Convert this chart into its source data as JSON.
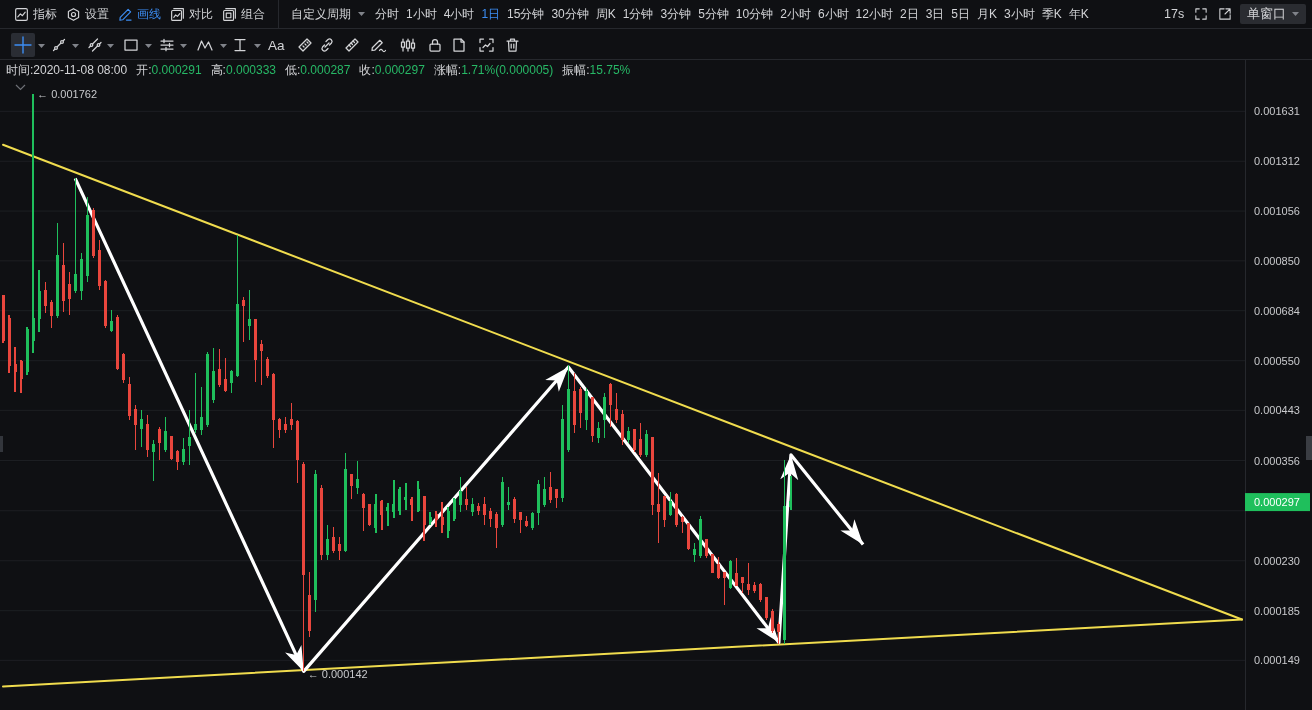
{
  "chart_data": {
    "type": "candlestick",
    "categories": [
      null,
      null,
      null,
      null,
      null,
      null,
      null,
      null,
      null,
      null,
      null,
      null,
      null,
      null,
      null,
      null,
      null,
      null,
      null,
      null,
      null,
      null,
      null,
      null,
      null,
      null,
      null,
      null,
      null,
      null,
      null,
      null,
      null,
      null,
      null,
      null,
      null,
      null,
      null,
      null,
      null,
      null,
      null,
      null,
      null,
      null,
      null,
      null,
      null,
      null,
      null,
      null,
      null,
      null,
      null,
      null,
      null,
      null,
      null,
      null,
      null,
      null,
      null,
      null,
      null,
      null,
      null,
      null,
      null,
      null,
      null,
      null,
      null,
      null,
      null,
      null,
      null,
      null,
      null,
      null,
      null,
      null,
      null,
      null,
      null,
      null,
      null,
      null,
      null,
      null,
      null,
      null,
      null,
      null,
      null,
      null,
      null,
      null,
      null,
      null,
      null,
      null,
      null,
      null,
      null,
      null,
      null,
      null,
      null,
      null,
      null,
      null,
      null,
      null,
      null,
      null,
      null,
      null,
      null,
      null,
      null,
      null,
      null,
      null,
      null,
      null,
      null,
      null,
      null,
      null,
      null,
      null,
      null,
      null,
      null,
      null,
      null,
      null,
      null,
      null,
      null,
      null,
      null,
      null,
      null,
      null,
      null,
      null,
      null,
      null,
      null,
      null,
      null,
      null,
      null,
      null,
      null,
      null,
      null,
      null,
      null,
      null,
      null,
      null,
      null,
      null,
      null,
      null,
      null,
      null,
      null,
      null,
      null,
      null,
      null,
      null,
      null,
      null,
      null,
      null,
      null,
      null,
      null,
      null,
      null,
      null,
      null,
      null,
      null,
      null,
      null,
      null,
      null,
      null,
      null,
      null,
      null,
      null,
      null,
      null,
      null,
      null,
      null,
      null,
      null,
      null,
      null
    ],
    "ohlc": [
      [
        0.000732,
        0.000732,
        0.000594,
        0.000602
      ],
      [
        0.000662,
        0.000671,
        0.000521,
        0.00054
      ],
      [
        0.00054,
        0.000584,
        0.00048,
        0.000524
      ],
      [
        0.000547,
        0.000552,
        0.000478,
        0.00051
      ],
      [
        0.000524,
        0.000637,
        0.000517,
        0.000629
      ],
      [
        0.000602,
        0.001762,
        0.000569,
        0.000662
      ],
      [
        0.000662,
        0.000816,
        0.000623,
        0.000742
      ],
      [
        0.000748,
        0.000775,
        0.000677,
        0.000701
      ],
      [
        0.00071,
        0.000716,
        0.000634,
        0.000671
      ],
      [
        0.000671,
        0.001001,
        0.000662,
        0.000871
      ],
      [
        0.000834,
        0.000918,
        0.00068,
        0.000716
      ],
      [
        0.000765,
        0.000809,
        0.000671,
        0.000722
      ],
      [
        0.000748,
        0.001218,
        0.000738,
        0.000799
      ],
      [
        0.000748,
        0.000879,
        0.000716,
        0.000853
      ],
      [
        0.000799,
        0.001121,
        0.000775,
        0.001037
      ],
      [
        0.00106,
        0.001069,
        0.00086,
        0.000871
      ],
      [
        0.00089,
        0.00093,
        0.000748,
        0.000765
      ],
      [
        0.000775,
        0.000781,
        0.000634,
        0.000642
      ],
      [
        0.000629,
        0.000686,
        0.000623,
        0.000651
      ],
      [
        0.000665,
        0.000671,
        0.000528,
        0.000533
      ],
      [
        0.000564,
        0.000569,
        0.000499,
        0.000506
      ],
      [
        0.000495,
        0.000512,
        0.000425,
        0.000434
      ],
      [
        0.000444,
        0.000454,
        0.000373,
        0.000416
      ],
      [
        0.00041,
        0.000444,
        0.000378,
        0.000425
      ],
      [
        0.000416,
        0.000434,
        0.000362,
        0.000373
      ],
      [
        0.00037,
        0.00039,
        0.000325,
        0.000381
      ],
      [
        0.000407,
        0.000412,
        0.000357,
        0.000386
      ],
      [
        0.000373,
        0.00043,
        0.00037,
        0.000403
      ],
      [
        0.000395,
        0.000395,
        0.000357,
        0.00036
      ],
      [
        0.00037,
        0.000373,
        0.000342,
        0.000354
      ],
      [
        0.000354,
        0.000393,
        0.000349,
        0.000373
      ],
      [
        0.000381,
        0.000444,
        0.000349,
        0.000393
      ],
      [
        0.000407,
        0.000521,
        0.000402,
        0.000416
      ],
      [
        0.000407,
        0.00049,
        0.000398,
        0.000429
      ],
      [
        0.000416,
        0.000571,
        0.000412,
        0.000564
      ],
      [
        0.000464,
        0.000581,
        0.000458,
        0.000524
      ],
      [
        0.000528,
        0.000578,
        0.00049,
        0.000497
      ],
      [
        0.000506,
        0.000556,
        0.00048,
        0.000484
      ],
      [
        0.000501,
        0.000528,
        0.000478,
        0.000524
      ],
      [
        0.000517,
        0.00095,
        0.000512,
        0.000701
      ],
      [
        0.000716,
        0.000726,
        0.000597,
        0.000701
      ],
      [
        0.000642,
        0.000748,
        0.000602,
        0.000657
      ],
      [
        0.000657,
        0.000657,
        0.000501,
        0.000552
      ],
      [
        0.000589,
        0.000602,
        0.000495,
        0.000576
      ],
      [
        0.000552,
        0.000559,
        0.00051,
        0.000517
      ],
      [
        0.000517,
        0.000521,
        0.000376,
        0.000425
      ],
      [
        0.000425,
        0.000429,
        0.000393,
        0.000407
      ],
      [
        0.000416,
        0.00043,
        0.000402,
        0.000407
      ],
      [
        0.000425,
        0.000458,
        0.000407,
        0.000416
      ],
      [
        0.000421,
        0.000425,
        0.000323,
        0.000357
      ],
      [
        0.000349,
        0.000354,
        0.000142,
        0.000217
      ],
      [
        0.000198,
        0.000219,
        0.000165,
        0.00017
      ],
      [
        0.000194,
        0.000342,
        0.000184,
        0.000335
      ],
      [
        0.000315,
        0.00032,
        0.000231,
        0.000236
      ],
      [
        0.000236,
        0.000269,
        0.000231,
        0.000252
      ],
      [
        0.000254,
        0.000266,
        0.000238,
        0.000241
      ],
      [
        0.000247,
        0.000255,
        0.000231,
        0.000241
      ],
      [
        0.000241,
        0.000368,
        0.000239,
        0.000342
      ],
      [
        0.000335,
        0.000335,
        0.000301,
        0.00032
      ],
      [
        0.000316,
        0.000356,
        0.000308,
        0.000327
      ],
      [
        0.000307,
        0.000309,
        0.000262,
        0.00029
      ],
      [
        0.000294,
        0.000294,
        0.000268,
        0.00027
      ],
      [
        0.000266,
        0.000308,
        0.00026,
        0.000294
      ],
      [
        0.000297,
        0.0003,
        0.000263,
        0.000281
      ],
      [
        0.000287,
        0.000296,
        0.000268,
        0.00029
      ],
      [
        0.000285,
        0.000327,
        0.000277,
        0.000294
      ],
      [
        0.000287,
        0.000317,
        0.000281,
        0.000313
      ],
      [
        0.0003,
        0.000323,
        0.000287,
        0.000303
      ],
      [
        0.0003,
        0.000304,
        0.000273,
        0.000294
      ],
      [
        0.000287,
        0.000325,
        0.000284,
        0.000313
      ],
      [
        0.000304,
        0.000305,
        0.000251,
        0.000269
      ],
      [
        0.000273,
        0.000285,
        0.000269,
        0.000277
      ],
      [
        0.000281,
        0.000286,
        0.000266,
        0.000275
      ],
      [
        0.000277,
        0.000297,
        0.00026,
        0.000269
      ],
      [
        0.000263,
        0.000291,
        0.000254,
        0.000285
      ],
      [
        0.000277,
        0.000303,
        0.000273,
        0.0003
      ],
      [
        0.000294,
        0.000332,
        0.000285,
        0.000311
      ],
      [
        0.0003,
        0.000317,
        0.000287,
        0.000294
      ],
      [
        0.000285,
        0.000303,
        0.000279,
        0.000294
      ],
      [
        0.000291,
        0.000296,
        0.000281,
        0.000287
      ],
      [
        0.000294,
        0.000304,
        0.000269,
        0.000281
      ],
      [
        0.000285,
        0.00029,
        0.000267,
        0.000277
      ],
      [
        0.000281,
        0.000284,
        0.000243,
        0.000266
      ],
      [
        0.000269,
        0.000332,
        0.000267,
        0.000323
      ],
      [
        0.000294,
        0.000317,
        0.000287,
        0.000296
      ],
      [
        0.0003,
        0.000304,
        0.000271,
        0.000277
      ],
      [
        0.000284,
        0.000285,
        0.00026,
        0.000275
      ],
      [
        0.000273,
        0.00028,
        0.000266,
        0.000268
      ],
      [
        0.000266,
        0.000285,
        0.000263,
        0.000282
      ],
      [
        0.000284,
        0.000327,
        0.000269,
        0.00032
      ],
      [
        0.000294,
        0.000332,
        0.000291,
        0.000313
      ],
      [
        0.000316,
        0.000339,
        0.000296,
        0.0003
      ],
      [
        0.000313,
        0.000313,
        0.00029,
        0.000303
      ],
      [
        0.000303,
        0.000454,
        0.000297,
        0.000425
      ],
      [
        0.000373,
        0.00054,
        0.00037,
        0.000484
      ],
      [
        0.00048,
        0.000521,
        0.000402,
        0.000416
      ],
      [
        0.000484,
        0.00049,
        0.00041,
        0.00044
      ],
      [
        0.000425,
        0.000488,
        0.000407,
        0.00048
      ],
      [
        0.000468,
        0.000468,
        0.000386,
        0.000398
      ],
      [
        0.000393,
        0.000421,
        0.000385,
        0.00041
      ],
      [
        0.000425,
        0.000478,
        0.000393,
        0.000468
      ],
      [
        0.000495,
        0.000499,
        0.000412,
        0.000454
      ],
      [
        0.000444,
        0.000478,
        0.000419,
        0.000425
      ],
      [
        0.000434,
        0.000444,
        0.000381,
        0.00039
      ],
      [
        0.00039,
        0.000412,
        0.000385,
        0.000403
      ],
      [
        0.000407,
        0.000407,
        0.00037,
        0.000373
      ],
      [
        0.00039,
        0.000419,
        0.000362,
        0.000365
      ],
      [
        0.000365,
        0.000407,
        0.000362,
        0.000398
      ],
      [
        0.000393,
        0.000393,
        0.000281,
        0.000294
      ],
      [
        0.000294,
        0.000337,
        0.000249,
        0.000285
      ],
      [
        0.000304,
        0.000304,
        0.000266,
        0.000275
      ],
      [
        0.000281,
        0.000311,
        0.000279,
        0.000297
      ],
      [
        0.000307,
        0.000309,
        0.000267,
        0.000269
      ],
      [
        0.000277,
        0.000279,
        0.00026,
        0.000273
      ],
      [
        0.000271,
        0.000271,
        0.000241,
        0.000243
      ],
      [
        0.000236,
        0.000249,
        0.000229,
        0.000241
      ],
      [
        0.000235,
        0.000279,
        0.000233,
        0.000275
      ],
      [
        0.000252,
        0.000252,
        0.000233,
        0.000235
      ],
      [
        0.000236,
        0.000236,
        0.000218,
        0.000219
      ],
      [
        0.000226,
        0.000234,
        0.000212,
        0.000214
      ],
      [
        0.000218,
        0.000218,
        0.00019,
        0.000214
      ],
      [
        0.000205,
        0.000231,
        0.000203,
        0.000229
      ],
      [
        0.000217,
        0.000233,
        0.000206,
        0.000207
      ],
      [
        0.000214,
        0.000214,
        0.0002,
        0.000209
      ],
      [
        0.000207,
        0.000228,
        0.000198,
        0.000203
      ],
      [
        0.000206,
        0.00021,
        0.0002,
        0.000202
      ],
      [
        0.000207,
        0.000209,
        0.000192,
        0.000194
      ],
      [
        0.000196,
        0.000196,
        0.000178,
        0.00018
      ],
      [
        0.000184,
        0.000186,
        0.000168,
        0.00017
      ],
      [
        0.000174,
        0.000176,
        0.00016,
        0.000169
      ],
      [
        0.000163,
        0.000357,
        0.00016,
        0.000291
      ],
      [
        0.000291,
        0.000333,
        0.000287,
        0.000297
      ],
      null,
      null,
      null,
      null,
      null,
      null,
      null,
      null,
      null,
      null,
      null,
      null,
      null,
      null,
      null,
      null,
      null,
      null,
      null,
      null,
      null,
      null,
      null,
      null,
      null,
      null,
      null,
      null,
      null,
      null,
      null,
      null,
      null,
      null,
      null,
      null,
      null,
      null,
      null,
      null,
      null,
      null,
      null,
      null,
      null,
      null,
      null,
      null,
      null,
      null,
      null,
      null,
      null,
      null,
      null,
      null,
      null,
      null,
      null,
      null,
      null,
      null,
      null,
      null,
      null,
      null,
      null,
      null,
      null,
      null,
      null,
      null,
      null,
      null,
      null
    ],
    "colors": [
      "#e9463d",
      "#e9463d",
      "#e9463d",
      "#e9463d",
      "#1fbf5c",
      "#1fbf5c",
      "#1fbf5c",
      "#e9463d",
      "#e9463d",
      "#1fbf5c",
      "#e9463d",
      "#e9463d",
      "#1fbf5c",
      "#1fbf5c",
      "#1fbf5c",
      "#e9463d",
      "#e9463d",
      "#e9463d",
      "#1fbf5c",
      "#e9463d",
      "#e9463d",
      "#e9463d",
      "#e9463d",
      "#1fbf5c",
      "#e9463d",
      "#1fbf5c",
      "#e9463d",
      "#1fbf5c",
      "#e9463d",
      "#e9463d",
      "#1fbf5c",
      "#1fbf5c",
      "#1fbf5c",
      "#1fbf5c",
      "#1fbf5c",
      "#1fbf5c",
      "#e9463d",
      "#e9463d",
      "#1fbf5c",
      "#1fbf5c",
      "#e9463d",
      "#1fbf5c",
      "#e9463d",
      "#e9463d",
      "#e9463d",
      "#e9463d",
      "#e9463d",
      "#e9463d",
      "#e9463d",
      "#e9463d",
      "#e9463d",
      "#e9463d",
      "#1fbf5c",
      "#e9463d",
      "#1fbf5c",
      "#e9463d",
      "#e9463d",
      "#1fbf5c",
      "#e9463d",
      "#1fbf5c",
      "#e9463d",
      "#e9463d",
      "#1fbf5c",
      "#e9463d",
      "#1fbf5c",
      "#1fbf5c",
      "#1fbf5c",
      "#1fbf5c",
      "#e9463d",
      "#1fbf5c",
      "#e9463d",
      "#1fbf5c",
      "#e9463d",
      "#e9463d",
      "#1fbf5c",
      "#1fbf5c",
      "#1fbf5c",
      "#e9463d",
      "#1fbf5c",
      "#e9463d",
      "#e9463d",
      "#e9463d",
      "#e9463d",
      "#1fbf5c",
      "#1fbf5c",
      "#e9463d",
      "#e9463d",
      "#e9463d",
      "#1fbf5c",
      "#1fbf5c",
      "#1fbf5c",
      "#e9463d",
      "#e9463d",
      "#1fbf5c",
      "#1fbf5c",
      "#e9463d",
      "#e9463d",
      "#1fbf5c",
      "#e9463d",
      "#1fbf5c",
      "#1fbf5c",
      "#e9463d",
      "#e9463d",
      "#e9463d",
      "#1fbf5c",
      "#e9463d",
      "#e9463d",
      "#1fbf5c",
      "#e9463d",
      "#e9463d",
      "#e9463d",
      "#1fbf5c",
      "#e9463d",
      "#e9463d",
      "#e9463d",
      "#1fbf5c",
      "#1fbf5c",
      "#e9463d",
      "#e9463d",
      "#e9463d",
      "#e9463d",
      "#1fbf5c",
      "#e9463d",
      "#e9463d",
      "#e9463d",
      "#e9463d",
      "#e9463d",
      "#e9463d",
      "#e9463d",
      "#e9463d",
      "#1fbf5c",
      "#1fbf5c",
      null,
      null,
      null,
      null,
      null,
      null,
      null,
      null,
      null,
      null,
      null,
      null,
      null,
      null,
      null,
      null,
      null,
      null,
      null,
      null,
      null,
      null,
      null,
      null,
      null,
      null,
      null,
      null,
      null,
      null,
      null,
      null,
      null,
      null,
      null,
      null,
      null,
      null,
      null,
      null,
      null,
      null,
      null,
      null,
      null,
      null,
      null,
      null,
      null,
      null,
      null,
      null,
      null,
      null,
      null,
      null,
      null,
      null,
      null,
      null,
      null,
      null,
      null,
      null,
      null,
      null,
      null,
      null,
      null,
      null,
      null,
      null,
      null,
      null,
      null
    ],
    "series": [
      {
        "type": "line",
        "color": "#f0dc4e",
        "values": [
          0.00141,
          null,
          null,
          null,
          null,
          null,
          null,
          null,
          null,
          null,
          null,
          null,
          null,
          null,
          null,
          null,
          null,
          null,
          null,
          null,
          null,
          null,
          null,
          null,
          null,
          null,
          null,
          null,
          null,
          null,
          null,
          null,
          null,
          null,
          null,
          null,
          null,
          null,
          null,
          null,
          null,
          null,
          null,
          null,
          null,
          null,
          null,
          null,
          null,
          null,
          null,
          null,
          null,
          null,
          null,
          null,
          null,
          null,
          null,
          null,
          null,
          null,
          null,
          null,
          null,
          null,
          null,
          null,
          null,
          null,
          null,
          null,
          null,
          null,
          null,
          null,
          null,
          null,
          null,
          null,
          null,
          null,
          null,
          null,
          null,
          null,
          null,
          null,
          null,
          null,
          null,
          null,
          null,
          null,
          null,
          null,
          null,
          null,
          null,
          null,
          null,
          null,
          null,
          null,
          null,
          null,
          null,
          null,
          null,
          null,
          null,
          null,
          null,
          null,
          null,
          null,
          null,
          null,
          null,
          null,
          null,
          null,
          null,
          null,
          null,
          null,
          null,
          null,
          null,
          null,
          null,
          null,
          null,
          null,
          null,
          null,
          null,
          null,
          null,
          null,
          null,
          null,
          null,
          null,
          null,
          null,
          null,
          null,
          null,
          null,
          null,
          null,
          null,
          null,
          null,
          null,
          null,
          null,
          null,
          null,
          null,
          null,
          null,
          null,
          null,
          null,
          null,
          null,
          null,
          null,
          null,
          null,
          null,
          null,
          null,
          null,
          null,
          null,
          null,
          null,
          null,
          null,
          null,
          null,
          null,
          null,
          null,
          null,
          null,
          null,
          null,
          null,
          null,
          null,
          null,
          null,
          null,
          null,
          null,
          null,
          null,
          null,
          null,
          null,
          null,
          null,
          0.000178
        ]
      },
      {
        "type": "line",
        "color": "#f0dc4e",
        "values": [
          0.000133,
          null,
          null,
          null,
          null,
          null,
          null,
          null,
          null,
          null,
          null,
          null,
          null,
          null,
          null,
          null,
          null,
          null,
          null,
          null,
          null,
          null,
          null,
          null,
          null,
          null,
          null,
          null,
          null,
          null,
          null,
          null,
          null,
          null,
          null,
          null,
          null,
          null,
          null,
          null,
          null,
          null,
          null,
          null,
          null,
          null,
          null,
          null,
          null,
          null,
          null,
          null,
          null,
          null,
          null,
          null,
          null,
          null,
          null,
          null,
          null,
          null,
          null,
          null,
          null,
          null,
          null,
          null,
          null,
          null,
          null,
          null,
          null,
          null,
          null,
          null,
          null,
          null,
          null,
          null,
          null,
          null,
          null,
          null,
          null,
          null,
          null,
          null,
          null,
          null,
          null,
          null,
          null,
          null,
          null,
          null,
          null,
          null,
          null,
          null,
          null,
          null,
          null,
          null,
          null,
          null,
          null,
          null,
          null,
          null,
          null,
          null,
          null,
          null,
          null,
          null,
          null,
          null,
          null,
          null,
          null,
          null,
          null,
          null,
          null,
          null,
          null,
          null,
          null,
          null,
          null,
          null,
          null,
          null,
          null,
          null,
          null,
          null,
          null,
          null,
          null,
          null,
          null,
          null,
          null,
          null,
          null,
          null,
          null,
          null,
          null,
          null,
          null,
          null,
          null,
          null,
          null,
          null,
          null,
          null,
          null,
          null,
          null,
          null,
          null,
          null,
          null,
          null,
          null,
          null,
          null,
          null,
          null,
          null,
          null,
          null,
          null,
          null,
          null,
          null,
          null,
          null,
          null,
          null,
          null,
          null,
          null,
          null,
          null,
          null,
          null,
          null,
          null,
          null,
          null,
          null,
          null,
          null,
          null,
          null,
          null,
          null,
          null,
          null,
          null,
          null,
          0.000178
        ]
      },
      {
        "type": "line",
        "color": "#ffffff",
        "values": [
          null,
          null,
          null,
          null,
          null,
          null,
          null,
          null,
          null,
          null,
          null,
          null,
          0.001218,
          null,
          null,
          null,
          null,
          null,
          null,
          null,
          null,
          null,
          null,
          null,
          null,
          null,
          null,
          null,
          null,
          null,
          null,
          null,
          null,
          null,
          null,
          null,
          null,
          null,
          null,
          null,
          null,
          null,
          null,
          null,
          null,
          null,
          null,
          null,
          null,
          null,
          0.000142,
          null,
          null,
          null,
          null,
          null,
          null,
          null,
          null,
          null,
          null,
          null,
          null,
          null,
          null,
          null,
          null,
          null,
          null,
          null,
          null,
          null,
          null,
          null,
          null,
          null,
          null,
          null,
          null,
          null,
          null,
          null,
          null,
          null,
          null,
          null,
          null,
          null,
          null,
          null,
          null,
          null,
          null,
          null,
          0.000535,
          null,
          null,
          null,
          null,
          null,
          null,
          null,
          null,
          null,
          null,
          null,
          null,
          null,
          null,
          null,
          null,
          null,
          null,
          null,
          null,
          null,
          null,
          null,
          null,
          null,
          null,
          null,
          null,
          null,
          null,
          null,
          null,
          null,
          null,
          0.000161,
          null,
          0.000365,
          null,
          null,
          null,
          null,
          null,
          null,
          null,
          null,
          null,
          null,
          null,
          0.000247,
          null,
          null,
          null,
          null,
          null,
          null,
          null,
          null,
          null,
          null,
          null,
          null,
          null,
          null,
          null,
          null,
          null,
          null,
          null,
          null,
          null,
          null,
          null,
          null,
          null,
          null,
          null,
          null,
          null,
          null,
          null,
          null,
          null,
          null,
          null,
          null,
          null,
          null,
          null,
          null,
          null,
          null,
          null,
          null,
          null,
          null,
          null,
          null,
          null,
          null,
          null,
          null,
          null,
          null,
          null,
          null,
          null,
          null,
          null,
          null,
          null,
          null,
          null
        ]
      }
    ],
    "ylim": [
      0.00012,
      0.00204
    ],
    "yticks": [
      0.000149,
      0.000185,
      {
        "value": 0.00023,
        "label": "0.000230"
      },
      {
        "value": 0.000286,
        "label": null
      },
      0.000356,
      0.000443,
      {
        "value": 0.00055,
        "label": "0.000550"
      },
      0.000684,
      {
        "value": 0.00085,
        "label": "0.000850"
      },
      0.001056,
      0.001312,
      0.001631
    ],
    "log": true,
    "grid": "y",
    "tick_labels": "y",
    "annotations": [
      "指标",
      "设置",
      "画线",
      "对比",
      "组合",
      "自定义周期",
      "分时",
      "1小时",
      "4小时",
      "1日",
      "15分钟",
      "30分钟",
      "周K",
      "1分钟",
      "3分钟",
      "5分钟",
      "10分钟",
      "2小时",
      "6小时",
      "12小时",
      "2日",
      "3日",
      "5日",
      "月K",
      "3小时",
      "季K",
      "年K",
      "17s",
      "单窗口",
      "Aa",
      "时间:2020-11-08 08:00",
      "开:0.000291",
      "高:0.000333",
      "低:0.000287",
      "收:0.000297",
      "涨幅:1.71%(0.000005)",
      "振幅:15.75%",
      "← 0.001762",
      "← 0.000142",
      "0.000297"
    ]
  }
}
